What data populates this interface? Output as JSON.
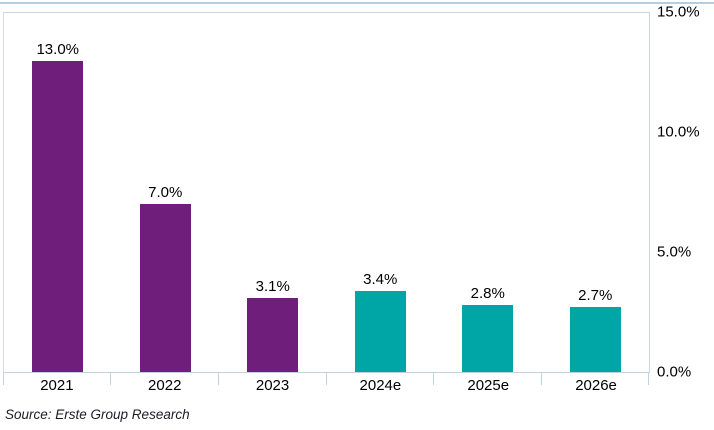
{
  "chart_data": {
    "type": "bar",
    "title": "",
    "xlabel": "",
    "ylabel": "",
    "categories": [
      "2021",
      "2022",
      "2023",
      "2024e",
      "2025e",
      "2026e"
    ],
    "values": [
      13.0,
      7.0,
      3.1,
      3.4,
      2.8,
      2.7
    ],
    "value_labels": [
      "13.0%",
      "7.0%",
      "3.1%",
      "3.4%",
      "2.8%",
      "2.7%"
    ],
    "bar_colors": [
      "#701E7C",
      "#701E7C",
      "#701E7C",
      "#00A5A5",
      "#00A5A5",
      "#00A5A5"
    ],
    "ylim": [
      0,
      15
    ],
    "y_ticks": [
      {
        "label": "0.0%",
        "value": 0
      },
      {
        "label": "5.0%",
        "value": 5
      },
      {
        "label": "10.0%",
        "value": 10
      },
      {
        "label": "15.0%",
        "value": 15
      }
    ],
    "y_axis_side": "right",
    "grid": false,
    "legend": null
  },
  "colors": {
    "actual_bar": "#701E7C",
    "estimate_bar": "#00A5A5",
    "axis_line": "#c3d2df",
    "top_rule": "#b5cde0",
    "text": "#000000"
  },
  "footer": {
    "source": "Source: Erste Group Research"
  }
}
